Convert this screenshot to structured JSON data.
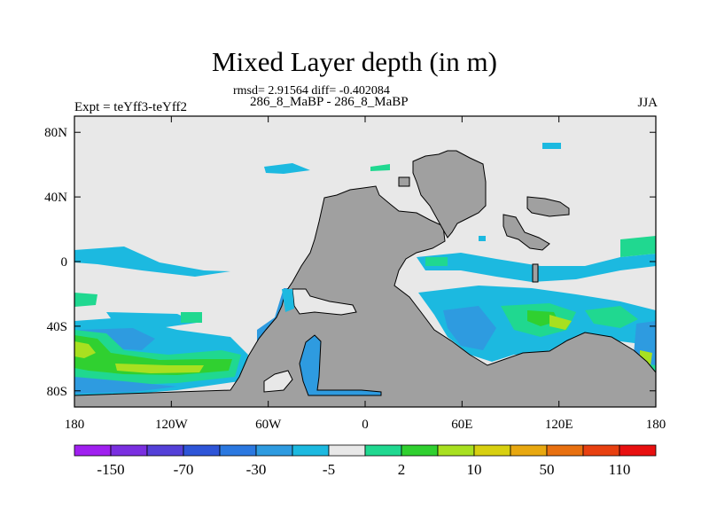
{
  "chart_data": {
    "type": "heatmap",
    "title": "Mixed Layer depth (in m)",
    "stats": "rmsd= 2.91564 diff= -0.402084",
    "cases": "286_8_MaBP - 286_8_MaBP",
    "left_label": "Expt = teYff3-teYff2",
    "right_label": "JJA",
    "x_range": [
      -180,
      180
    ],
    "y_range": [
      -90,
      90
    ],
    "x_ticks": [
      {
        "value": -180,
        "label": "180"
      },
      {
        "value": -120,
        "label": "120W"
      },
      {
        "value": -60,
        "label": "60W"
      },
      {
        "value": 0,
        "label": "0"
      },
      {
        "value": 60,
        "label": "60E"
      },
      {
        "value": 120,
        "label": "120E"
      },
      {
        "value": 180,
        "label": "180"
      }
    ],
    "y_ticks": [
      {
        "value": 80,
        "label": "80N"
      },
      {
        "value": 40,
        "label": "40N"
      },
      {
        "value": 0,
        "label": "0"
      },
      {
        "value": -40,
        "label": "40S"
      },
      {
        "value": -80,
        "label": "80S"
      }
    ],
    "colorbar": {
      "colors": [
        "#a020f0",
        "#7a2fe0",
        "#5440d8",
        "#2e55d8",
        "#2b78e0",
        "#2e9be0",
        "#1cb9e0",
        "#e8e8e8",
        "#20d890",
        "#30d030",
        "#a8e020",
        "#d8d010",
        "#e8a810",
        "#e87010",
        "#e84010",
        "#e81010"
      ],
      "labels": [
        "-150",
        "-70",
        "-30",
        "-5",
        "2",
        "10",
        "50",
        "110"
      ]
    },
    "land_color": "#a0a0a0",
    "ocean_background": "#e8e8e8"
  }
}
